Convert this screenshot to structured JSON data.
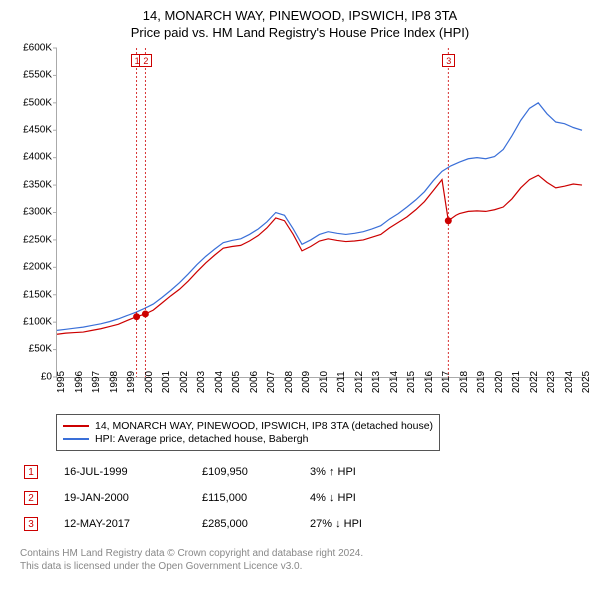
{
  "title_line1": "14, MONARCH WAY, PINEWOOD, IPSWICH, IP8 3TA",
  "title_line2": "Price paid vs. HM Land Registry's House Price Index (HPI)",
  "chart": {
    "type": "line",
    "x_years": [
      1995,
      1996,
      1997,
      1998,
      1999,
      2000,
      2001,
      2002,
      2003,
      2004,
      2005,
      2006,
      2007,
      2008,
      2009,
      2010,
      2011,
      2012,
      2013,
      2014,
      2015,
      2016,
      2017,
      2018,
      2019,
      2020,
      2021,
      2022,
      2023,
      2024,
      2025
    ],
    "xlim": [
      1995,
      2025
    ],
    "ylim": [
      0,
      600000
    ],
    "ytick_step": 50000,
    "y_tick_labels": [
      "£0",
      "£50K",
      "£100K",
      "£150K",
      "£200K",
      "£250K",
      "£300K",
      "£350K",
      "£400K",
      "£450K",
      "£500K",
      "£550K",
      "£600K"
    ],
    "background_color": "#ffffff",
    "grid": false,
    "series": [
      {
        "name": "14, MONARCH WAY, PINEWOOD, IPSWICH, IP8 3TA (detached house)",
        "color": "#cc0000",
        "line_width": 1.2,
        "points": [
          [
            1995,
            78000
          ],
          [
            1995.5,
            80000
          ],
          [
            1996,
            81000
          ],
          [
            1996.5,
            82000
          ],
          [
            1997,
            85000
          ],
          [
            1997.5,
            88000
          ],
          [
            1998,
            92000
          ],
          [
            1998.5,
            96000
          ],
          [
            1999,
            103000
          ],
          [
            1999.55,
            109950
          ],
          [
            2000.05,
            115000
          ],
          [
            2000.5,
            122000
          ],
          [
            2001,
            135000
          ],
          [
            2001.5,
            148000
          ],
          [
            2002,
            160000
          ],
          [
            2002.5,
            175000
          ],
          [
            2003,
            192000
          ],
          [
            2003.5,
            208000
          ],
          [
            2004,
            222000
          ],
          [
            2004.5,
            235000
          ],
          [
            2005,
            238000
          ],
          [
            2005.5,
            240000
          ],
          [
            2006,
            248000
          ],
          [
            2006.5,
            258000
          ],
          [
            2007,
            272000
          ],
          [
            2007.5,
            290000
          ],
          [
            2008,
            285000
          ],
          [
            2008.5,
            260000
          ],
          [
            2009,
            230000
          ],
          [
            2009.5,
            238000
          ],
          [
            2010,
            248000
          ],
          [
            2010.5,
            252000
          ],
          [
            2011,
            249000
          ],
          [
            2011.5,
            247000
          ],
          [
            2012,
            248000
          ],
          [
            2012.5,
            250000
          ],
          [
            2013,
            255000
          ],
          [
            2013.5,
            260000
          ],
          [
            2014,
            272000
          ],
          [
            2014.5,
            282000
          ],
          [
            2015,
            292000
          ],
          [
            2015.5,
            305000
          ],
          [
            2016,
            320000
          ],
          [
            2016.5,
            340000
          ],
          [
            2017,
            360000
          ],
          [
            2017.36,
            285000
          ],
          [
            2017.8,
            295000
          ],
          [
            2018,
            298000
          ],
          [
            2018.5,
            302000
          ],
          [
            2019,
            303000
          ],
          [
            2019.5,
            302000
          ],
          [
            2020,
            305000
          ],
          [
            2020.5,
            310000
          ],
          [
            2021,
            325000
          ],
          [
            2021.5,
            345000
          ],
          [
            2022,
            360000
          ],
          [
            2022.5,
            368000
          ],
          [
            2023,
            355000
          ],
          [
            2023.5,
            345000
          ],
          [
            2024,
            348000
          ],
          [
            2024.5,
            352000
          ],
          [
            2025,
            350000
          ]
        ]
      },
      {
        "name": "HPI: Average price, detached house, Babergh",
        "color": "#3a6fd8",
        "line_width": 1.2,
        "points": [
          [
            1995,
            85000
          ],
          [
            1995.5,
            87000
          ],
          [
            1996,
            89000
          ],
          [
            1996.5,
            91000
          ],
          [
            1997,
            94000
          ],
          [
            1997.5,
            97000
          ],
          [
            1998,
            101000
          ],
          [
            1998.5,
            106000
          ],
          [
            1999,
            112000
          ],
          [
            1999.5,
            118000
          ],
          [
            2000,
            125000
          ],
          [
            2000.5,
            133000
          ],
          [
            2001,
            145000
          ],
          [
            2001.5,
            158000
          ],
          [
            2002,
            172000
          ],
          [
            2002.5,
            188000
          ],
          [
            2003,
            205000
          ],
          [
            2003.5,
            220000
          ],
          [
            2004,
            233000
          ],
          [
            2004.5,
            245000
          ],
          [
            2005,
            249000
          ],
          [
            2005.5,
            252000
          ],
          [
            2006,
            260000
          ],
          [
            2006.5,
            270000
          ],
          [
            2007,
            283000
          ],
          [
            2007.5,
            300000
          ],
          [
            2008,
            295000
          ],
          [
            2008.5,
            270000
          ],
          [
            2009,
            242000
          ],
          [
            2009.5,
            250000
          ],
          [
            2010,
            260000
          ],
          [
            2010.5,
            265000
          ],
          [
            2011,
            262000
          ],
          [
            2011.5,
            260000
          ],
          [
            2012,
            262000
          ],
          [
            2012.5,
            265000
          ],
          [
            2013,
            270000
          ],
          [
            2013.5,
            276000
          ],
          [
            2014,
            288000
          ],
          [
            2014.5,
            298000
          ],
          [
            2015,
            310000
          ],
          [
            2015.5,
            323000
          ],
          [
            2016,
            338000
          ],
          [
            2016.5,
            358000
          ],
          [
            2017,
            375000
          ],
          [
            2017.5,
            385000
          ],
          [
            2018,
            392000
          ],
          [
            2018.5,
            398000
          ],
          [
            2019,
            400000
          ],
          [
            2019.5,
            398000
          ],
          [
            2020,
            402000
          ],
          [
            2020.5,
            415000
          ],
          [
            2021,
            440000
          ],
          [
            2021.5,
            468000
          ],
          [
            2022,
            490000
          ],
          [
            2022.5,
            500000
          ],
          [
            2023,
            480000
          ],
          [
            2023.5,
            465000
          ],
          [
            2024,
            462000
          ],
          [
            2024.5,
            455000
          ],
          [
            2025,
            450000
          ]
        ]
      }
    ],
    "transaction_markers": [
      {
        "index": 1,
        "color": "#cc0000",
        "x": 1999.55,
        "y": 109950,
        "box_above": true
      },
      {
        "index": 2,
        "color": "#cc0000",
        "x": 2000.05,
        "y": 115000,
        "box_above": true
      },
      {
        "index": 3,
        "color": "#cc0000",
        "x": 2017.36,
        "y": 285000,
        "box_above": true
      }
    ]
  },
  "legend": {
    "items": [
      {
        "color": "#cc0000",
        "label": "14, MONARCH WAY, PINEWOOD, IPSWICH, IP8 3TA (detached house)"
      },
      {
        "color": "#3a6fd8",
        "label": "HPI: Average price, detached house, Babergh"
      }
    ]
  },
  "transactions": [
    {
      "idx": "1",
      "color": "#cc0000",
      "date": "16-JUL-1999",
      "price": "£109,950",
      "delta": "3% ↑ HPI"
    },
    {
      "idx": "2",
      "color": "#cc0000",
      "date": "19-JAN-2000",
      "price": "£115,000",
      "delta": "4% ↓ HPI"
    },
    {
      "idx": "3",
      "color": "#cc0000",
      "date": "12-MAY-2017",
      "price": "£285,000",
      "delta": "27% ↓ HPI"
    }
  ],
  "footer_line1": "Contains HM Land Registry data © Crown copyright and database right 2024.",
  "footer_line2": "This data is licensed under the Open Government Licence v3.0."
}
